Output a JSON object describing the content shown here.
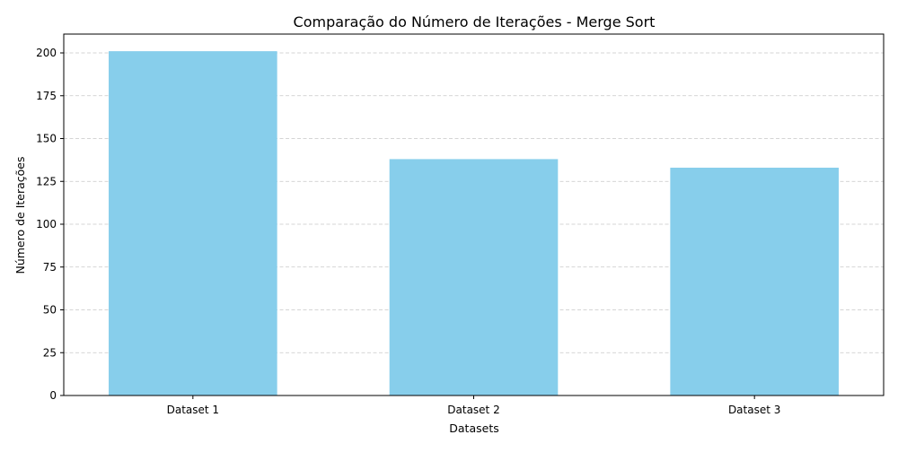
{
  "chart_data": {
    "type": "bar",
    "title": "Comparação do Número de Iterações - Merge Sort",
    "xlabel": "Datasets",
    "ylabel": "Número de Iterações",
    "categories": [
      "Dataset 1",
      "Dataset 2",
      "Dataset 3"
    ],
    "values": [
      201,
      138,
      133
    ],
    "ylim": [
      0,
      211
    ],
    "yticks": [
      0,
      25,
      50,
      75,
      100,
      125,
      150,
      175,
      200
    ],
    "grid": "y-dashed",
    "legend": "none",
    "bar_color": "#87CEEB",
    "grid_color": "#c8c8c8"
  }
}
